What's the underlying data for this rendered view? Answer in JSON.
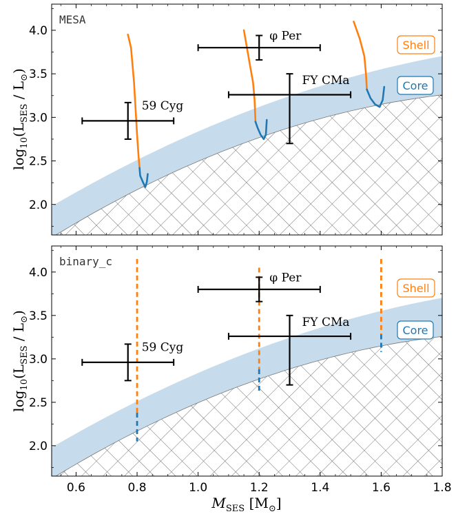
{
  "chart_data": [
    {
      "type": "line",
      "model_label": "MESA",
      "xlim": [
        0.52,
        1.8
      ],
      "ylim": [
        1.65,
        4.3
      ],
      "ylabel_main": "log",
      "ylabel_sub": "10",
      "ylabel_rest": "(L",
      "ylabel_L_sub": "SES",
      "ylabel_tail": " / L",
      "ylabel_sun": "⊙",
      "ylabel_close": ")",
      "yticks": [
        "2.0",
        "2.5",
        "3.0",
        "3.5",
        "4.0"
      ],
      "legend_boxes": [
        {
          "text": "Shell",
          "color": "#ff7f0e"
        },
        {
          "text": "Core",
          "color": "#1f77b4"
        }
      ],
      "observations": [
        {
          "name": "59 Cyg",
          "x": 0.77,
          "y": 2.96,
          "xerr": 0.15,
          "yerr_low": 0.21,
          "yerr_high": 0.21
        },
        {
          "name": "φ Per",
          "x": 1.2,
          "y": 3.8,
          "xerr": 0.2,
          "yerr_low": 0.14,
          "yerr_high": 0.14
        },
        {
          "name": "FY CMa",
          "x": 1.3,
          "y": 3.26,
          "xerr": 0.2,
          "yerr_low": 0.56,
          "yerr_high": 0.24
        }
      ],
      "tracks": [
        {
          "shell": [
            [
              0.77,
              3.95
            ],
            [
              0.78,
              3.8
            ],
            [
              0.785,
              3.6
            ],
            [
              0.79,
              3.4
            ],
            [
              0.795,
              3.1
            ],
            [
              0.8,
              2.8
            ],
            [
              0.805,
              2.55
            ],
            [
              0.808,
              2.42
            ]
          ],
          "core": [
            [
              0.808,
              2.42
            ],
            [
              0.81,
              2.33
            ],
            [
              0.82,
              2.25
            ],
            [
              0.827,
              2.2
            ],
            [
              0.832,
              2.26
            ],
            [
              0.835,
              2.35
            ]
          ]
        },
        {
          "shell": [
            [
              1.15,
              4.0
            ],
            [
              1.16,
              3.8
            ],
            [
              1.17,
              3.6
            ],
            [
              1.18,
              3.4
            ],
            [
              1.185,
              3.2
            ],
            [
              1.188,
              2.95
            ]
          ],
          "core": [
            [
              1.188,
              2.95
            ],
            [
              1.195,
              2.88
            ],
            [
              1.205,
              2.8
            ],
            [
              1.215,
              2.75
            ],
            [
              1.222,
              2.8
            ],
            [
              1.225,
              2.97
            ]
          ]
        },
        {
          "shell": [
            [
              1.51,
              4.1
            ],
            [
              1.53,
              3.9
            ],
            [
              1.545,
              3.7
            ],
            [
              1.55,
              3.5
            ],
            [
              1.553,
              3.32
            ]
          ],
          "core": [
            [
              1.553,
              3.32
            ],
            [
              1.565,
              3.22
            ],
            [
              1.58,
              3.15
            ],
            [
              1.595,
              3.12
            ],
            [
              1.605,
              3.2
            ],
            [
              1.61,
              3.35
            ]
          ]
        }
      ]
    },
    {
      "type": "line",
      "model_label": "binary_c",
      "xlim": [
        0.52,
        1.8
      ],
      "ylim": [
        1.65,
        4.3
      ],
      "xticks": [
        "0.6",
        "0.8",
        "1.0",
        "1.2",
        "1.4",
        "1.6",
        "1.8"
      ],
      "xlabel_main": "M",
      "xlabel_sub": "SES",
      "xlabel_rest": " [M",
      "xlabel_sun": "⊙",
      "xlabel_close": "]",
      "ylabel_main": "log",
      "ylabel_sub": "10",
      "ylabel_rest": "(L",
      "ylabel_L_sub": "SES",
      "ylabel_tail": " / L",
      "ylabel_sun": "⊙",
      "ylabel_close": ")",
      "yticks": [
        "2.0",
        "2.5",
        "3.0",
        "3.5",
        "4.0"
      ],
      "legend_boxes": [
        {
          "text": "Shell",
          "color": "#ff7f0e"
        },
        {
          "text": "Core",
          "color": "#1f77b4"
        }
      ],
      "observations": [
        {
          "name": "59 Cyg",
          "x": 0.77,
          "y": 2.96,
          "xerr": 0.15,
          "yerr_low": 0.21,
          "yerr_high": 0.21
        },
        {
          "name": "φ Per",
          "x": 1.2,
          "y": 3.8,
          "xerr": 0.2,
          "yerr_low": 0.14,
          "yerr_high": 0.14
        },
        {
          "name": "FY CMa",
          "x": 1.3,
          "y": 3.26,
          "xerr": 0.2,
          "yerr_low": 0.56,
          "yerr_high": 0.24
        }
      ],
      "dashed_tracks": [
        {
          "x": 0.8,
          "shell": [
            2.38,
            4.15
          ],
          "core": [
            2.05,
            2.38
          ]
        },
        {
          "x": 1.2,
          "shell": [
            2.88,
            4.05
          ],
          "core": [
            2.6,
            2.88
          ]
        },
        {
          "x": 1.6,
          "shell": [
            3.28,
            4.15
          ],
          "core": [
            3.08,
            3.28
          ]
        }
      ]
    }
  ],
  "colors": {
    "shell": "#ff7f0e",
    "core": "#1f77b4",
    "band": "#c6dcec",
    "hatch": "#555555",
    "obs": "#000000"
  }
}
